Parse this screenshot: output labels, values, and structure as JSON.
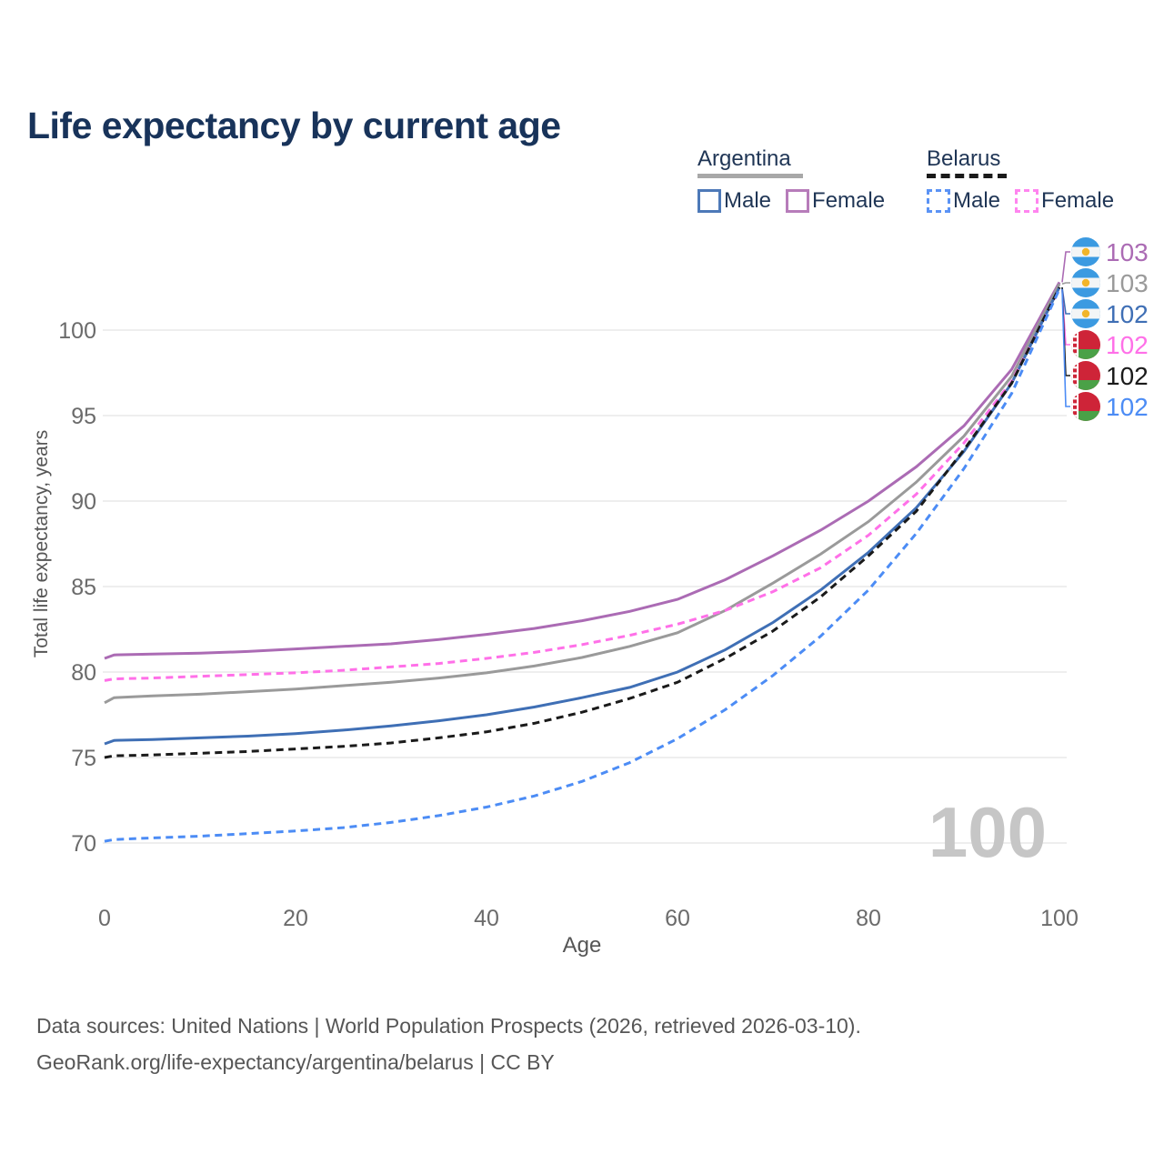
{
  "title": "Life expectancy by current age",
  "legend": {
    "groups": [
      {
        "label": "Argentina",
        "line_style": "solid",
        "underline_color": "#a8a8a8",
        "items": [
          {
            "label": "Male",
            "color": "#4d79b8",
            "dashed": false
          },
          {
            "label": "Female",
            "color": "#b77cba",
            "dashed": false
          }
        ]
      },
      {
        "label": "Belarus",
        "line_style": "dashed",
        "underline_color": "#1a1a1a",
        "items": [
          {
            "label": "Male",
            "color": "#5b93f5",
            "dashed": true
          },
          {
            "label": "Female",
            "color": "#ff85ef",
            "dashed": true
          }
        ]
      }
    ]
  },
  "chart_data": {
    "type": "line",
    "title": "Life expectancy by current age",
    "xlabel": "Age",
    "ylabel": "Total life expectancy, years",
    "x_ticks": [
      0,
      20,
      40,
      60,
      80,
      100
    ],
    "y_ticks": [
      70,
      75,
      80,
      85,
      90,
      95,
      100
    ],
    "xlim": [
      0,
      100
    ],
    "ylim": [
      68.5,
      103.5
    ],
    "grid": "horizontal",
    "legend_position": "top-right",
    "watermark": "100",
    "watermark_color": "#c6c6c6",
    "grid_color": "#e9e9e9",
    "tick_color": "#6b6b6b",
    "x": [
      0,
      1,
      5,
      10,
      15,
      20,
      25,
      30,
      35,
      40,
      45,
      50,
      55,
      60,
      65,
      70,
      75,
      80,
      85,
      90,
      95,
      100
    ],
    "series": [
      {
        "name": "Argentina Female",
        "color": "#ab6bb4",
        "dashed": false,
        "flag": "argentina",
        "end_label": "103",
        "values": [
          80.8,
          81.0,
          81.05,
          81.1,
          81.2,
          81.35,
          81.5,
          81.65,
          81.9,
          82.2,
          82.55,
          83.0,
          83.55,
          84.25,
          85.4,
          86.8,
          88.3,
          90.0,
          92.0,
          94.4,
          97.7,
          102.8
        ]
      },
      {
        "name": "Argentina both sexes",
        "color": "#9a9a9a",
        "dashed": false,
        "flag": "argentina",
        "end_label": "103",
        "values": [
          78.2,
          78.5,
          78.6,
          78.7,
          78.85,
          79.0,
          79.2,
          79.4,
          79.65,
          79.95,
          80.35,
          80.85,
          81.5,
          82.3,
          83.6,
          85.2,
          86.9,
          88.8,
          91.1,
          93.8,
          97.3,
          102.7
        ]
      },
      {
        "name": "Argentina Male",
        "color": "#3f6fb5",
        "dashed": false,
        "flag": "argentina",
        "end_label": "102",
        "values": [
          75.8,
          76.0,
          76.05,
          76.15,
          76.25,
          76.4,
          76.6,
          76.85,
          77.15,
          77.5,
          77.95,
          78.5,
          79.1,
          80.0,
          81.3,
          82.9,
          84.8,
          87.0,
          89.6,
          92.9,
          96.9,
          102.5
        ]
      },
      {
        "name": "Belarus Female",
        "color": "#ff70e8",
        "dashed": true,
        "flag": "belarus",
        "end_label": "102",
        "values": [
          79.5,
          79.6,
          79.65,
          79.75,
          79.85,
          79.95,
          80.1,
          80.3,
          80.5,
          80.8,
          81.15,
          81.6,
          82.15,
          82.8,
          83.6,
          84.7,
          86.1,
          88.0,
          90.4,
          93.4,
          97.0,
          102.4
        ]
      },
      {
        "name": "Belarus both sexes",
        "color": "#1a1a1a",
        "dashed": true,
        "flag": "belarus",
        "end_label": "102",
        "values": [
          75.0,
          75.1,
          75.15,
          75.25,
          75.35,
          75.5,
          75.65,
          75.85,
          76.15,
          76.5,
          77.0,
          77.65,
          78.45,
          79.4,
          80.8,
          82.4,
          84.4,
          86.8,
          89.4,
          93.0,
          96.9,
          102.5
        ]
      },
      {
        "name": "Belarus Male",
        "color": "#4c8cf5",
        "dashed": true,
        "flag": "belarus",
        "end_label": "102",
        "values": [
          70.1,
          70.2,
          70.3,
          70.4,
          70.55,
          70.7,
          70.9,
          71.2,
          71.6,
          72.1,
          72.75,
          73.6,
          74.7,
          76.1,
          77.8,
          79.8,
          82.1,
          84.8,
          88.1,
          91.9,
          96.3,
          102.4
        ]
      }
    ],
    "flag_colors": {
      "argentina_blue": "#3b9ae1",
      "argentina_white": "#f3f5f6",
      "argentina_sun": "#f2b52a",
      "belarus_red": "#ce2438",
      "belarus_green": "#4aa147",
      "belarus_white": "#ffffff"
    }
  },
  "footer": {
    "line1": "Data sources: United Nations | World Population Prospects (2026, retrieved 2026-03-10).",
    "line2": "GeoRank.org/life-expectancy/argentina/belarus | CC BY"
  }
}
